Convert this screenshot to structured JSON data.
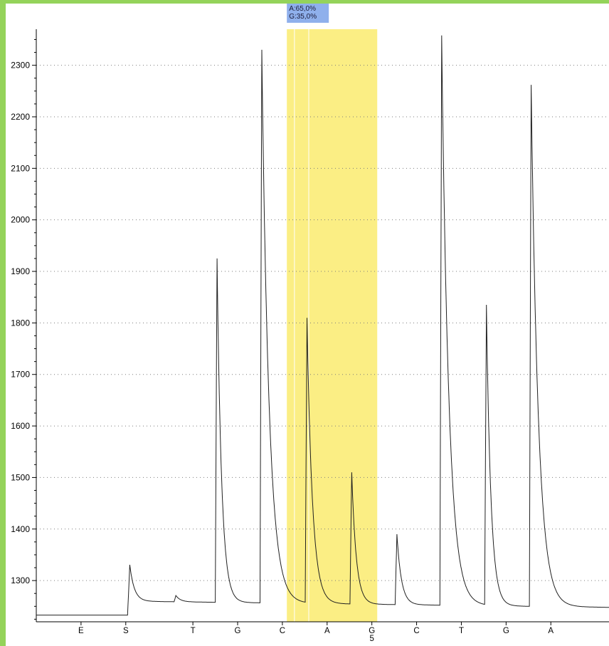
{
  "chart_data": {
    "type": "line",
    "title": "",
    "xlabel": "",
    "ylabel": "",
    "ylim": [
      1220,
      2370
    ],
    "yticks": [
      1300,
      1400,
      1500,
      1600,
      1700,
      1800,
      1900,
      2000,
      2100,
      2200,
      2300
    ],
    "grid": "dotted horizontal",
    "dispensation": [
      {
        "label": "E",
        "position": 1
      },
      {
        "label": "S",
        "position": 2
      },
      {
        "label": "T",
        "position": 3.5
      },
      {
        "label": "G",
        "position": 4.5
      },
      {
        "label": "C",
        "position": 5.5
      },
      {
        "label": "A",
        "position": 6.5,
        "sub": ""
      },
      {
        "label": "G",
        "position": 7.5,
        "sub": "5"
      },
      {
        "label": "C",
        "position": 8.5
      },
      {
        "label": "T",
        "position": 9.5
      },
      {
        "label": "G",
        "position": 10.5
      },
      {
        "label": "A",
        "position": 11.5
      }
    ],
    "x_range": [
      0,
      12.8
    ],
    "baseline": {
      "start": 1233,
      "after_S": 1260,
      "end": 1248
    },
    "peaks": [
      {
        "label": "S",
        "x": 2.08,
        "value": 1338,
        "decay": 0.1
      },
      {
        "label": "T",
        "x": 3.12,
        "value": 1271,
        "decay": 0.1
      },
      {
        "label": "G",
        "x": 4.04,
        "value": 1925,
        "decay": 0.1
      },
      {
        "label": "C",
        "x": 5.04,
        "value": 2330,
        "decay": 0.16
      },
      {
        "label": "A",
        "x": 6.05,
        "value": 1808,
        "decay": 0.12
      },
      {
        "label": "G",
        "x": 7.05,
        "value": 1510,
        "decay": 0.1
      },
      {
        "label": "C",
        "x": 8.06,
        "value": 1390,
        "decay": 0.1
      },
      {
        "label": "T",
        "x": 9.06,
        "value": 2358,
        "decay": 0.16
      },
      {
        "label": "G",
        "x": 10.06,
        "value": 1833,
        "decay": 0.1
      },
      {
        "label": "A",
        "x": 11.06,
        "value": 2262,
        "decay": 0.16
      }
    ],
    "highlight": {
      "x_start": 5.6,
      "x_end": 7.62,
      "color": "#fbee84",
      "marker_x": [
        5.77,
        6.09
      ]
    },
    "annotation": {
      "lines": [
        "A:65,0%",
        "G:35,0%"
      ],
      "background": "#8fb0ec"
    },
    "trace_color": "#202020",
    "grid_color": "#7d7d7d"
  }
}
